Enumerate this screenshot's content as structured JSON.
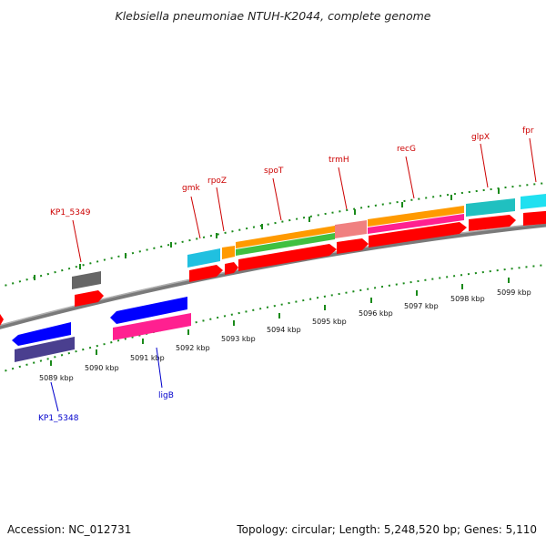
{
  "title": "Klebsiella pneumoniae NTUH-K2044, complete genome",
  "accession": "Accession: NC_012731",
  "topology": "Topology: circular; Length: 5,248,520 bp; Genes: 5,110",
  "ticks": [
    "5089 kbp",
    "5090 kbp",
    "5091 kbp",
    "5092 kbp",
    "5093 kbp",
    "5094 kbp",
    "5095 kbp",
    "5096 kbp",
    "5097 kbp",
    "5098 kbp",
    "5099 kbp"
  ],
  "top_labels": [
    "KP1_5349",
    "gmk",
    "rpoZ",
    "spoT",
    "trmH",
    "recG",
    "glpX",
    "fpr"
  ],
  "bottom_labels": [
    "KP1_5348",
    "ligB"
  ],
  "colors": {
    "backbone": "#8a8a8a",
    "tick": "#1a8a1a",
    "red": "#ff0000",
    "blue": "#0000ff",
    "navy": "#4a3f8f",
    "pink": "#ff2090",
    "gray": "#666666",
    "cyan": "#20c0e0",
    "orange": "#ff9a00",
    "green": "#40c040",
    "salmon": "#f08080",
    "teal": "#20c0c0"
  }
}
